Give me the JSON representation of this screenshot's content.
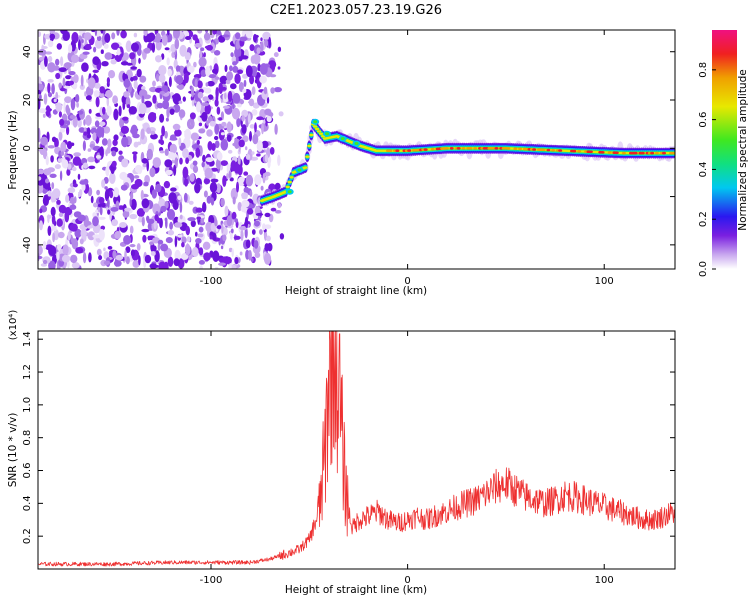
{
  "title": "C2E1.2023.057.23.19.G26",
  "chart_data": [
    {
      "type": "heatmap",
      "xlabel": "Height of straight line (km)",
      "ylabel": "Frequency (Hz)",
      "xlim": [
        -188,
        136
      ],
      "ylim": [
        -50,
        49
      ],
      "xticks": [
        -100,
        0,
        100
      ],
      "yticks": [
        -40,
        -20,
        0,
        20,
        40
      ],
      "grid": false,
      "colorbar": {
        "label": "Normalized spectral amplitude",
        "range": [
          0.0,
          0.96
        ],
        "ticks": [
          "0.0",
          "0.2",
          "0.4",
          "0.6",
          "0.8"
        ],
        "colors": [
          "#ffffff",
          "#c9a8ef",
          "#7a1fe0",
          "#2a18f0",
          "#00c8f0",
          "#10e080",
          "#40e820",
          "#e8e800",
          "#f0a000",
          "#f02020",
          "#f01080"
        ]
      },
      "features": {
        "noise_region_x": [
          -188,
          -70
        ],
        "trace_points": [
          {
            "x": -75,
            "y": -22
          },
          {
            "x": -68,
            "y": -20
          },
          {
            "x": -62,
            "y": -18
          },
          {
            "x": -58,
            "y": -10
          },
          {
            "x": -52,
            "y": -8
          },
          {
            "x": -48,
            "y": 10
          },
          {
            "x": -42,
            "y": 4
          },
          {
            "x": -36,
            "y": 5
          },
          {
            "x": -30,
            "y": 3
          },
          {
            "x": -24,
            "y": 1
          },
          {
            "x": -16,
            "y": -1
          },
          {
            "x": 0,
            "y": -1
          },
          {
            "x": 20,
            "y": 0
          },
          {
            "x": 50,
            "y": 0
          },
          {
            "x": 80,
            "y": -1
          },
          {
            "x": 110,
            "y": -2
          },
          {
            "x": 136,
            "y": -2
          }
        ]
      }
    },
    {
      "type": "line",
      "xlabel": "Height of straight line (km)",
      "ylabel": "SNR (10 * v/v)",
      "yscale_label": "(x10⁴)",
      "xlim": [
        -188,
        136
      ],
      "ylim": [
        0,
        1.45
      ],
      "xticks": [
        -100,
        0,
        100
      ],
      "yticks": [
        0.2,
        0.4,
        0.6,
        0.8,
        1.0,
        1.2,
        1.4
      ],
      "grid": false,
      "series": [
        {
          "color": "#ee3030",
          "x": [
            -188,
            -150,
            -120,
            -100,
            -80,
            -70,
            -60,
            -55,
            -50,
            -45,
            -42,
            -40,
            -38,
            -36,
            -34,
            -32,
            -30,
            -28,
            -25,
            -20,
            -15,
            -10,
            -5,
            0,
            5,
            10,
            15,
            20,
            25,
            30,
            35,
            40,
            45,
            50,
            55,
            60,
            65,
            70,
            75,
            80,
            85,
            90,
            95,
            100,
            105,
            110,
            115,
            120,
            125,
            130,
            136
          ],
          "y": [
            0.03,
            0.03,
            0.04,
            0.04,
            0.04,
            0.06,
            0.1,
            0.12,
            0.18,
            0.35,
            0.7,
            1.2,
            1.45,
            1.3,
            0.9,
            0.55,
            0.35,
            0.25,
            0.3,
            0.32,
            0.35,
            0.3,
            0.28,
            0.3,
            0.32,
            0.3,
            0.33,
            0.35,
            0.38,
            0.4,
            0.42,
            0.46,
            0.5,
            0.52,
            0.48,
            0.44,
            0.42,
            0.4,
            0.42,
            0.45,
            0.44,
            0.42,
            0.4,
            0.38,
            0.36,
            0.34,
            0.32,
            0.3,
            0.3,
            0.32,
            0.35
          ]
        }
      ]
    }
  ]
}
